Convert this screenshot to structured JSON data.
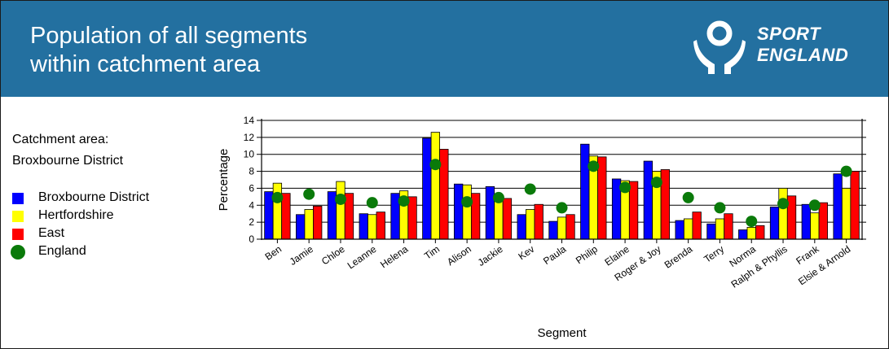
{
  "header": {
    "title_line1": "Population of all segments",
    "title_line2": "within catchment area",
    "logo_line1": "SPORT",
    "logo_line2": "ENGLAND"
  },
  "sidebar": {
    "catchment_label": "Catchment area:",
    "catchment_value": "Broxbourne District"
  },
  "colors": {
    "banner": "#2370a0",
    "broxbourne": "#0000ff",
    "hertfordshire": "#ffff00",
    "east": "#ff0000",
    "england": "#0a7a0a"
  },
  "chart_data": {
    "type": "bar",
    "title": "",
    "xlabel": "Segment",
    "ylabel": "Percentage",
    "ylim": [
      0,
      14
    ],
    "yticks": [
      0,
      2,
      4,
      6,
      8,
      10,
      12,
      14
    ],
    "grid": true,
    "legend_position": "left",
    "categories": [
      "Ben",
      "Jamie",
      "Chloe",
      "Leanne",
      "Helena",
      "Tim",
      "Alison",
      "Jackie",
      "Kev",
      "Paula",
      "Philip",
      "Elaine",
      "Roger & Joy",
      "Brenda",
      "Terry",
      "Norma",
      "Ralph & Phyllis",
      "Frank",
      "Elsie & Arnold"
    ],
    "series": [
      {
        "name": "Broxbourne District",
        "mark": "bar",
        "color": "#0000ff",
        "values": [
          5.6,
          2.9,
          5.6,
          3.0,
          5.4,
          11.9,
          6.5,
          6.2,
          2.9,
          2.1,
          11.2,
          7.1,
          9.2,
          2.2,
          1.8,
          1.1,
          3.8,
          4.1,
          7.7
        ]
      },
      {
        "name": "Hertfordshire",
        "mark": "bar",
        "color": "#ffff00",
        "values": [
          6.6,
          3.5,
          6.8,
          2.9,
          5.7,
          12.6,
          6.4,
          5.0,
          3.5,
          2.6,
          9.8,
          6.9,
          8.0,
          2.4,
          2.4,
          1.4,
          6.0,
          3.1,
          6.0
        ]
      },
      {
        "name": "East",
        "mark": "bar",
        "color": "#ff0000",
        "values": [
          5.4,
          3.9,
          5.4,
          3.2,
          5.0,
          10.6,
          5.4,
          4.8,
          4.1,
          2.9,
          9.7,
          6.8,
          8.2,
          3.2,
          3.0,
          1.6,
          5.1,
          4.3,
          8.0
        ]
      },
      {
        "name": "England",
        "mark": "point",
        "color": "#0a7a0a",
        "values": [
          4.9,
          5.3,
          4.7,
          4.3,
          4.5,
          8.8,
          4.4,
          4.9,
          5.9,
          3.7,
          8.6,
          6.1,
          6.7,
          4.9,
          3.7,
          2.1,
          4.2,
          4.0,
          8.0
        ]
      }
    ]
  }
}
